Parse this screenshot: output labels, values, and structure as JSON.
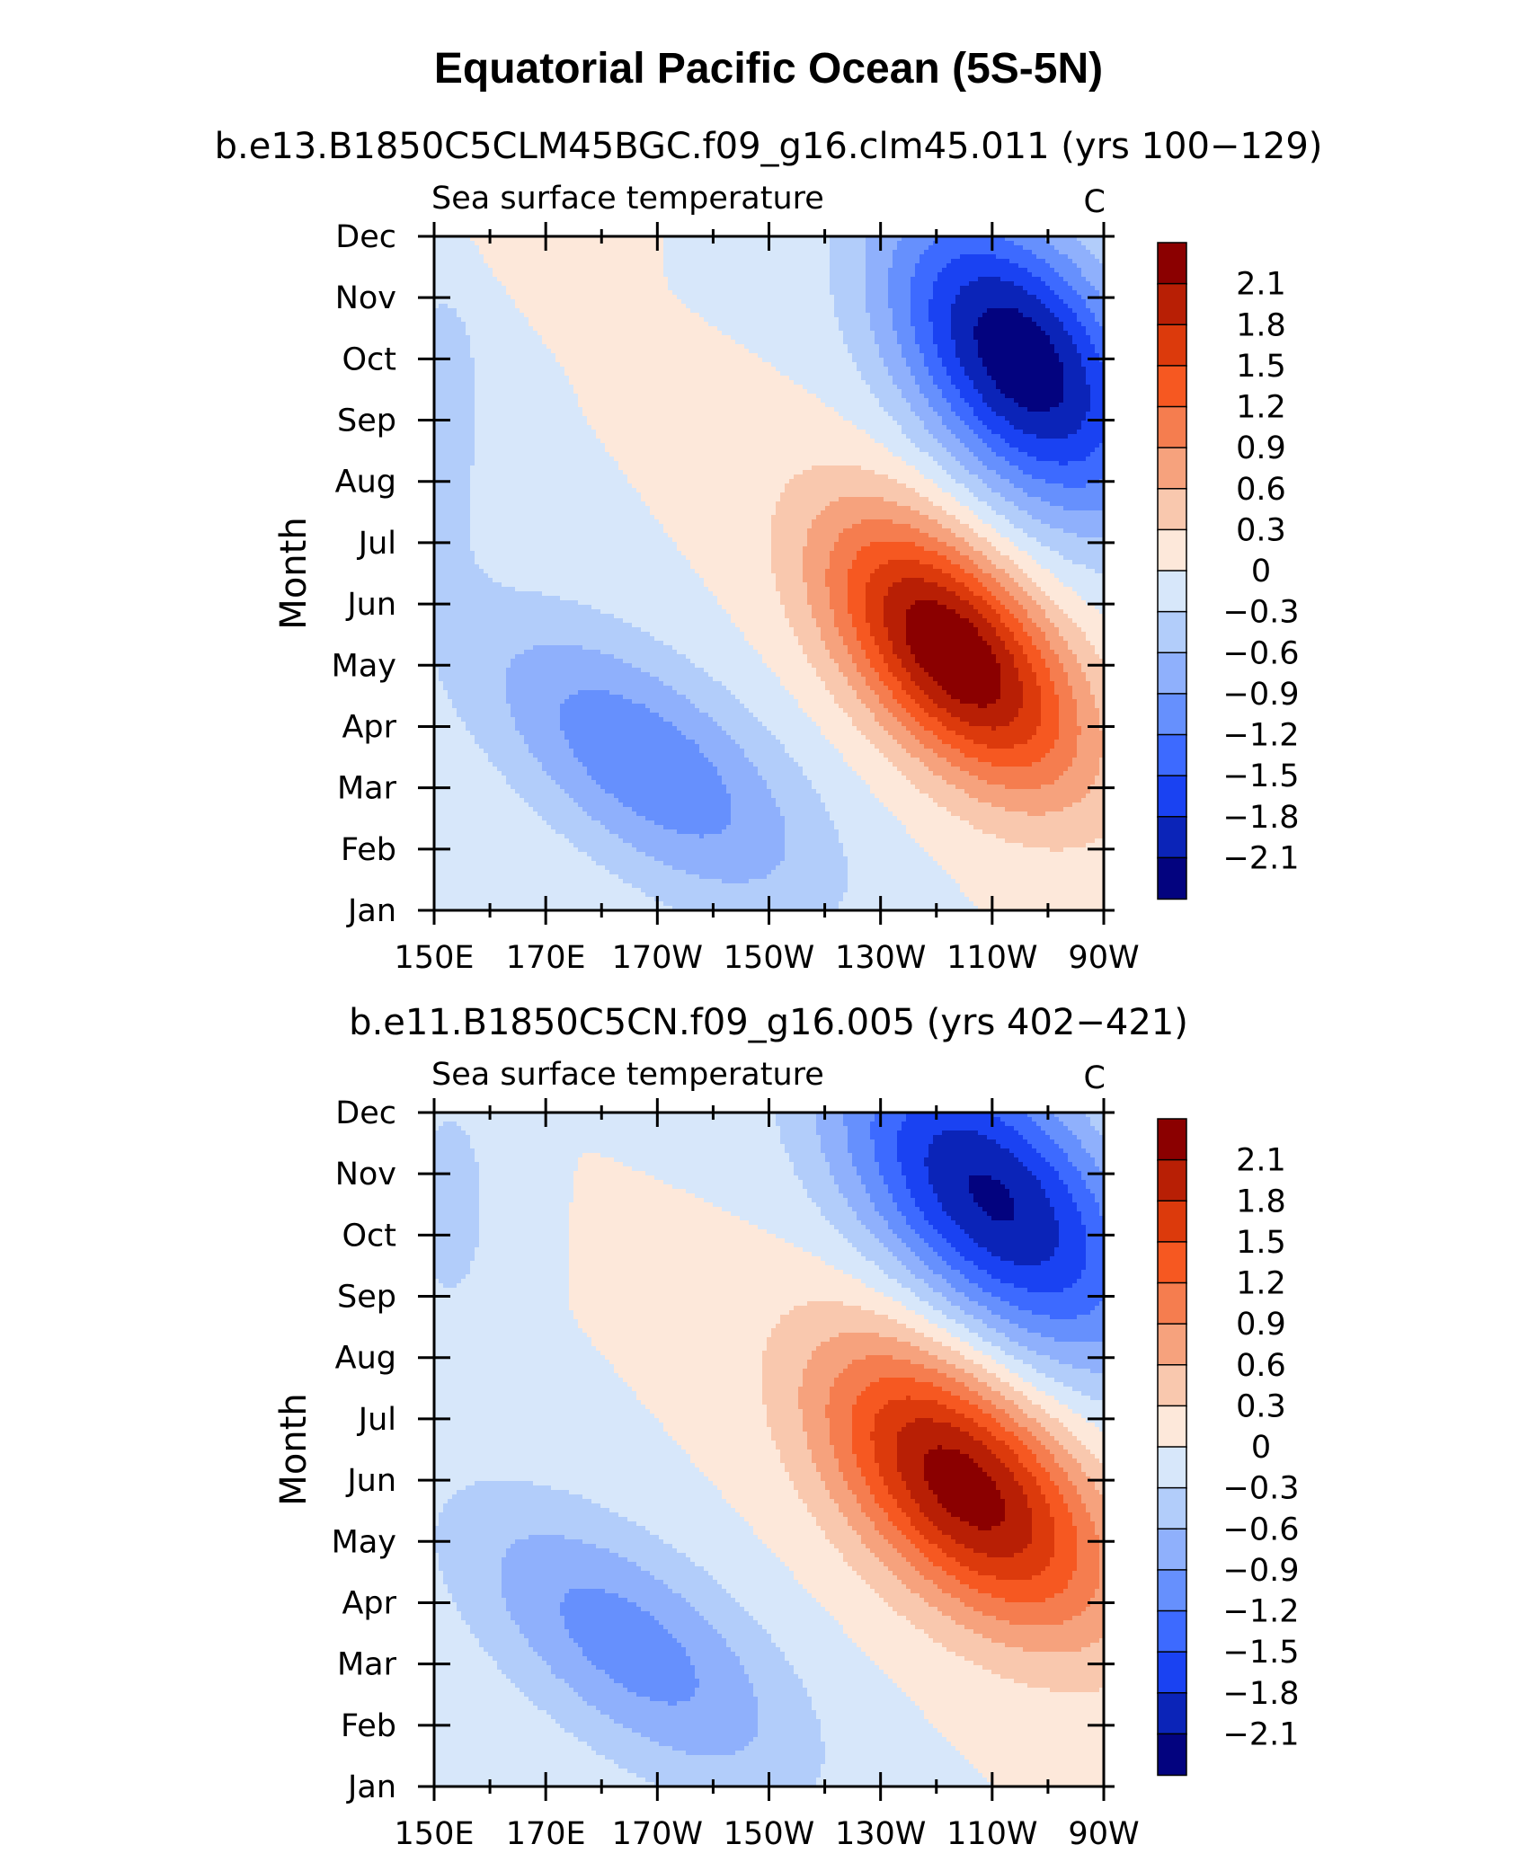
{
  "figure": {
    "title": "Equatorial Pacific Ocean (5S-5N)"
  },
  "chart_data": [
    {
      "type": "heatmap",
      "subtitle": "b.e13.B1850C5CLM45BGC.f09_g16.clm45.011 (yrs 100−129)",
      "left_label": "Sea surface temperature",
      "right_label": "C",
      "ylabel": "Month",
      "xlabel": "",
      "x_ticks": [
        "150E",
        "170E",
        "170W",
        "150W",
        "130W",
        "110W",
        "90W"
      ],
      "y_ticks": [
        "Jan",
        "Feb",
        "Mar",
        "Apr",
        "May",
        "Jun",
        "Jul",
        "Aug",
        "Sep",
        "Oct",
        "Nov",
        "Dec"
      ],
      "x_range_deg_east": [
        150,
        270
      ],
      "features": [
        {
          "lon": 243,
          "month": 4.2,
          "amp": 2.45,
          "sx": 16,
          "sy": 1.3,
          "slope": -0.055
        },
        {
          "lon": 188,
          "month": 2.4,
          "amp": -1.15,
          "sx": 22,
          "sy": 1.3,
          "slope": -0.05
        },
        {
          "lon": 255,
          "month": 9.0,
          "amp": -2.35,
          "sx": 17,
          "sy": 1.6,
          "slope": -0.05
        },
        {
          "lon": 152,
          "month": 8.3,
          "amp": -0.45,
          "sx": 6,
          "sy": 2.0,
          "slope": 0.0
        },
        {
          "lon": 160,
          "month": 11.2,
          "amp": 0.15,
          "sx": 10,
          "sy": 0.8,
          "slope": 0.0
        }
      ]
    },
    {
      "type": "heatmap",
      "subtitle": "b.e11.B1850C5CN.f09_g16.005 (yrs 402−421)",
      "left_label": "Sea surface temperature",
      "right_label": "C",
      "ylabel": "Month",
      "xlabel": "",
      "x_ticks": [
        "150E",
        "170E",
        "170W",
        "150W",
        "130W",
        "110W",
        "90W"
      ],
      "y_ticks": [
        "Jan",
        "Feb",
        "Mar",
        "Apr",
        "May",
        "Jun",
        "Jul",
        "Aug",
        "Sep",
        "Oct",
        "Nov",
        "Dec"
      ],
      "x_range_deg_east": [
        150,
        270
      ],
      "features": [
        {
          "lon": 245,
          "month": 4.9,
          "amp": 2.3,
          "sx": 18,
          "sy": 1.4,
          "slope": -0.05
        },
        {
          "lon": 185,
          "month": 2.3,
          "amp": -1.05,
          "sx": 22,
          "sy": 1.3,
          "slope": -0.05
        },
        {
          "lon": 250,
          "month": 9.6,
          "amp": -2.15,
          "sx": 20,
          "sy": 1.6,
          "slope": -0.05
        },
        {
          "lon": 153,
          "month": 9.5,
          "amp": -0.45,
          "sx": 6,
          "sy": 1.5,
          "slope": 0.0
        }
      ]
    }
  ],
  "colorbar": {
    "labels": [
      "2.1",
      "1.8",
      "1.5",
      "1.2",
      "0.9",
      "0.6",
      "0.3",
      "0",
      "−0.3",
      "−0.6",
      "−0.9",
      "−1.2",
      "−1.5",
      "−1.8",
      "−2.1"
    ],
    "levels": [
      2.1,
      1.8,
      1.5,
      1.2,
      0.9,
      0.6,
      0.3,
      0,
      -0.3,
      -0.6,
      -0.9,
      -1.2,
      -1.5,
      -1.8,
      -2.1
    ],
    "colors_top_to_bottom": [
      "#8b0000",
      "#b81f05",
      "#dc3a0c",
      "#f65821",
      "#f57d4f",
      "#f6a27d",
      "#f9c8ae",
      "#fde8da",
      "#d7e7fa",
      "#b2cdfa",
      "#8fb0fc",
      "#6690fd",
      "#3d6aff",
      "#1a42f2",
      "#0b24b8",
      "#03037f"
    ]
  }
}
